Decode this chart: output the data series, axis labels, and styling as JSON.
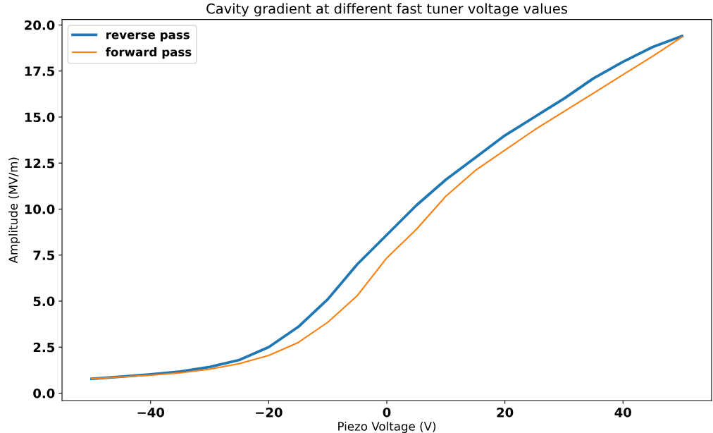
{
  "chart_data": {
    "type": "line",
    "title": "Cavity gradient at different fast tuner voltage values",
    "xlabel": "Piezo Voltage (V)",
    "ylabel": "Amplitude (MV/m)",
    "x": [
      -50,
      -45,
      -40,
      -35,
      -30,
      -25,
      -20,
      -15,
      -10,
      -5,
      0,
      5,
      10,
      15,
      20,
      25,
      30,
      35,
      40,
      45,
      50
    ],
    "series": [
      {
        "name": "reverse pass",
        "color": "#1f77b4",
        "values": [
          0.78,
          0.9,
          1.02,
          1.17,
          1.42,
          1.8,
          2.5,
          3.6,
          5.1,
          7.0,
          8.6,
          10.2,
          11.6,
          12.8,
          14.0,
          15.0,
          16.0,
          17.1,
          18.0,
          18.8,
          19.4
        ]
      },
      {
        "name": "forward pass",
        "color": "#ff7f0e",
        "values": [
          0.78,
          0.88,
          0.98,
          1.1,
          1.3,
          1.6,
          2.05,
          2.75,
          3.85,
          5.3,
          7.35,
          8.9,
          10.7,
          12.1,
          13.2,
          14.3,
          15.3,
          16.3,
          17.3,
          18.3,
          19.35
        ]
      }
    ],
    "xlim": [
      -55,
      55
    ],
    "ylim": [
      -0.4,
      20.3
    ],
    "xticks": [
      {
        "value": -40,
        "label": "−40"
      },
      {
        "value": -20,
        "label": "−20"
      },
      0,
      20,
      40
    ],
    "yticks": [
      {
        "value": 0,
        "label": "0.0"
      },
      2.5,
      {
        "value": 5,
        "label": "5.0"
      },
      7.5,
      {
        "value": 10,
        "label": "10.0"
      },
      12.5,
      {
        "value": 15,
        "label": "15.0"
      },
      17.5,
      {
        "value": 20,
        "label": "20.0"
      }
    ],
    "legend": "top left",
    "grid": false
  }
}
